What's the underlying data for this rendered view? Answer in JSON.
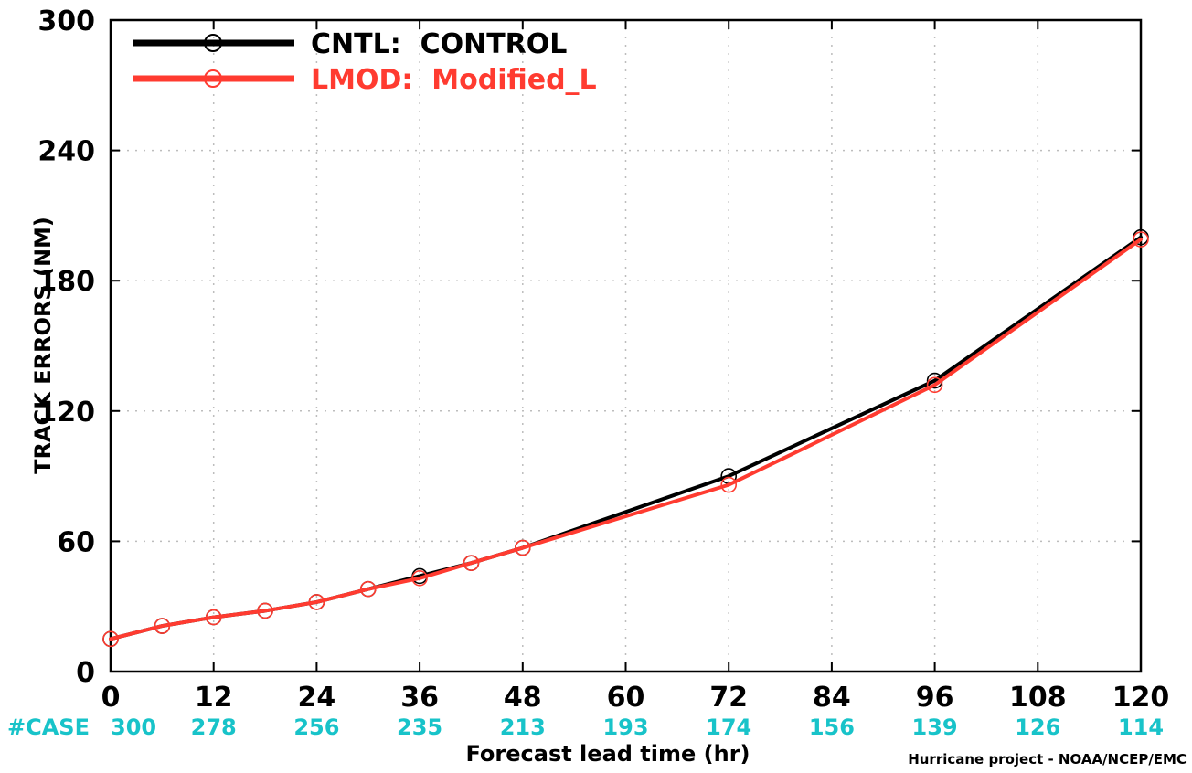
{
  "chart_data": {
    "type": "line",
    "title": "",
    "xlabel": "Forecast lead time (hr)",
    "ylabel": "TRACK ERRORS (NM)",
    "xlim": [
      0,
      120
    ],
    "ylim": [
      0,
      300
    ],
    "x_ticks": [
      0,
      12,
      24,
      36,
      48,
      60,
      72,
      84,
      96,
      108,
      120
    ],
    "y_ticks": [
      0,
      60,
      120,
      180,
      240,
      300
    ],
    "grid": true,
    "legend_position": "top-left",
    "series": [
      {
        "name": "CNTL:  CONTROL",
        "color": "#000000",
        "marker": "open-circle",
        "x": [
          0,
          6,
          12,
          18,
          24,
          30,
          36,
          42,
          48,
          72,
          96,
          120
        ],
        "y": [
          15,
          21,
          25,
          28,
          32,
          38,
          44,
          50,
          57,
          90,
          134,
          200
        ]
      },
      {
        "name": "LMOD:  Modified_L",
        "color": "#ff3b30",
        "marker": "open-circle",
        "x": [
          0,
          6,
          12,
          18,
          24,
          30,
          36,
          42,
          48,
          72,
          96,
          120
        ],
        "y": [
          15,
          21,
          25,
          28,
          32,
          38,
          43,
          50,
          57,
          86,
          132,
          199
        ]
      }
    ],
    "case_counts": {
      "label": "#CASE",
      "color": "#18c3c9",
      "x": [
        0,
        12,
        24,
        36,
        48,
        60,
        72,
        84,
        96,
        108,
        120
      ],
      "values": [
        300,
        278,
        256,
        235,
        213,
        193,
        174,
        156,
        139,
        126,
        114
      ]
    },
    "credit": "Hurricane project - NOAA/NCEP/EMC"
  }
}
